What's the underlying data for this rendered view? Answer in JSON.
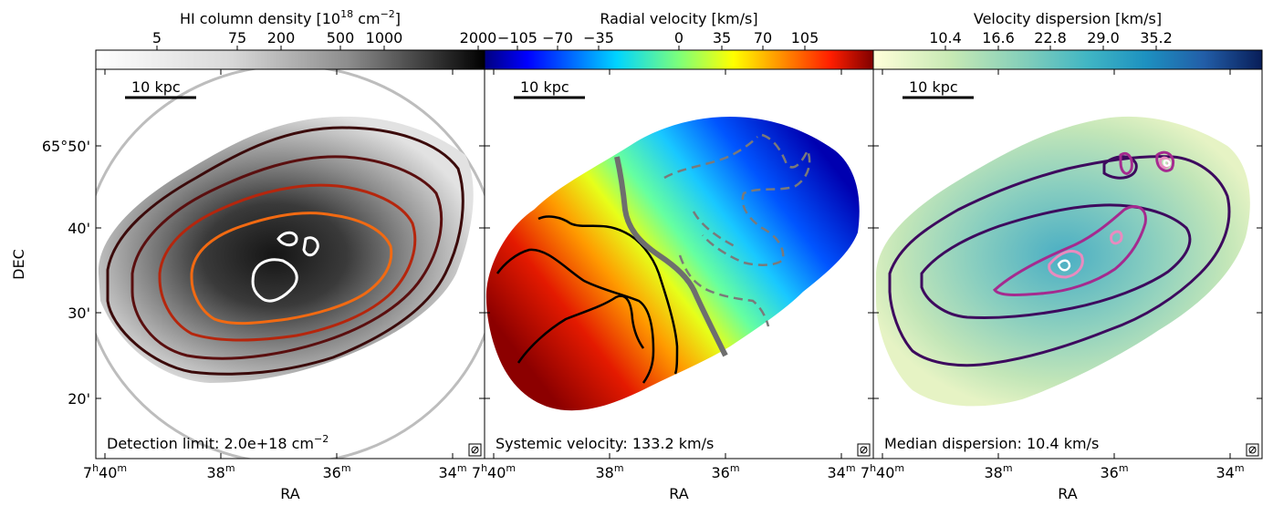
{
  "panels": [
    {
      "id": "hi",
      "colorbar_title": "HI column density [10",
      "colorbar_title_sup": "18",
      "colorbar_title_mid": " cm",
      "colorbar_title_sup2": "−2",
      "colorbar_title_end": "]",
      "colorbar_ticks": [
        "5",
        "75",
        "200",
        "500",
        "1000",
        "2000"
      ],
      "colormap": "gray_r",
      "scalebar": "10 kpc",
      "note": "Detection limit: 2.0e+18 cm",
      "note_sup": "−2",
      "contour_colors": [
        "#3b0b0b",
        "#8a1a0a",
        "#c8300e",
        "#f26a12",
        "#ffffff"
      ]
    },
    {
      "id": "velocity",
      "colorbar_title": "Radial velocity [km/s]",
      "colorbar_ticks": [
        "−105",
        "−70",
        "−35",
        "0",
        "35",
        "70",
        "105"
      ],
      "colormap": "jet",
      "scalebar": "10 kpc",
      "note": "Systemic velocity: 133.2 km/s",
      "contour_colors": [
        "#000000",
        "#6e6e6e",
        "#7a7a7a"
      ]
    },
    {
      "id": "dispersion",
      "colorbar_title": "Velocity dispersion [km/s]",
      "colorbar_ticks": [
        "10.4",
        "16.6",
        "22.8",
        "29.0",
        "35.2"
      ],
      "colormap": "YlGnBu",
      "scalebar": "10 kpc",
      "note": "Median dispersion: 10.4 km/s",
      "contour_colors": [
        "#3d0a5e",
        "#a52a8f",
        "#e98bbf",
        "#ffffff"
      ]
    }
  ],
  "axes": {
    "xlabel": "RA",
    "ylabel": "DEC",
    "ra_ticks": [
      {
        "h": "7",
        "hsup": "h",
        "m": "40",
        "msup": "m"
      },
      {
        "m": "38",
        "msup": "m"
      },
      {
        "m": "36",
        "msup": "m"
      },
      {
        "m": "34",
        "msup": "m"
      }
    ],
    "dec_ticks": [
      "65°50'",
      "40'",
      "30'",
      "20'"
    ]
  },
  "colors": {
    "jet": [
      "#00007f",
      "#0000ff",
      "#0080ff",
      "#00ffff",
      "#80ff80",
      "#ffff00",
      "#ff8000",
      "#ff0000",
      "#7f0000"
    ],
    "gray_r": [
      "#ffffff",
      "#e0e0e0",
      "#a8a8a8",
      "#5a5a5a",
      "#000000"
    ],
    "YlGnBu": [
      "#ffffd9",
      "#c7e9b4",
      "#7fcdbb",
      "#41b6c4",
      "#1d91c0",
      "#225ea8",
      "#0c2c84",
      "#081d58"
    ]
  }
}
